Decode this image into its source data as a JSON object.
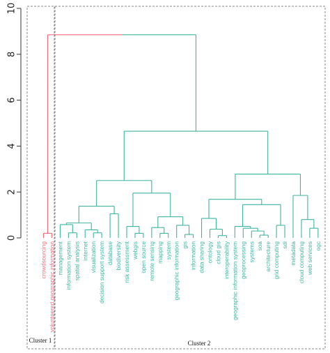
{
  "chart_data": {
    "type": "dendrogram",
    "ylim": [
      0,
      10
    ],
    "yticks": [
      0,
      2,
      4,
      6,
      8,
      10
    ],
    "colors": {
      "cluster1": "#f06a7a",
      "cluster2": "#3fb5a0"
    },
    "leaves": [
      {
        "id": "crowdsourcing",
        "label": "crowdsourcing",
        "cluster": 1
      },
      {
        "id": "vgi",
        "label": "volunteered geographic information",
        "cluster": 1
      },
      {
        "id": "mgmt",
        "label": "management",
        "cluster": 2
      },
      {
        "id": "infosys",
        "label": "information system",
        "cluster": 2
      },
      {
        "id": "spatial",
        "label": "spatial analysis",
        "cluster": 2
      },
      {
        "id": "internet",
        "label": "internet",
        "cluster": 2
      },
      {
        "id": "vis",
        "label": "visualization",
        "cluster": 2
      },
      {
        "id": "dss",
        "label": "decision support system",
        "cluster": 2
      },
      {
        "id": "db",
        "label": "database",
        "cluster": 2
      },
      {
        "id": "bio",
        "label": "biodiversity",
        "cluster": 2
      },
      {
        "id": "risk",
        "label": "risk assessment",
        "cluster": 2
      },
      {
        "id": "webgis",
        "label": "webgis",
        "cluster": 2
      },
      {
        "id": "opensrc",
        "label": "open source",
        "cluster": 2
      },
      {
        "id": "rs",
        "label": "remote sensing",
        "cluster": 2
      },
      {
        "id": "mapping",
        "label": "mapping",
        "cluster": 2
      },
      {
        "id": "system",
        "label": "system",
        "cluster": 2
      },
      {
        "id": "geoinfo",
        "label": "geographic information",
        "cluster": 2
      },
      {
        "id": "gis",
        "label": "gis",
        "cluster": 2
      },
      {
        "id": "information",
        "label": "information",
        "cluster": 2
      },
      {
        "id": "datashare",
        "label": "data sharing",
        "cluster": 2
      },
      {
        "id": "ontology",
        "label": "ontology",
        "cluster": 2
      },
      {
        "id": "cloudgis",
        "label": "cloud gis",
        "cluster": 2
      },
      {
        "id": "interop",
        "label": "interoperability",
        "cluster": 2
      },
      {
        "id": "geoinfosys",
        "label": "geographic information system",
        "cluster": 2
      },
      {
        "id": "geoproc",
        "label": "geoprocessing",
        "cluster": 2
      },
      {
        "id": "systems",
        "label": "systems",
        "cluster": 2
      },
      {
        "id": "soa",
        "label": "soa",
        "cluster": 2
      },
      {
        "id": "arch",
        "label": "architecture",
        "cluster": 2
      },
      {
        "id": "grid",
        "label": "grid computing",
        "cluster": 2
      },
      {
        "id": "sdi",
        "label": "sdi",
        "cluster": 2
      },
      {
        "id": "metadata",
        "label": "metadata",
        "cluster": 2
      },
      {
        "id": "cloudcomp",
        "label": "cloud computing",
        "cluster": 2
      },
      {
        "id": "websvc",
        "label": "web services",
        "cluster": 2
      },
      {
        "id": "ogc",
        "label": "ogc",
        "cluster": 2
      }
    ],
    "merges": [
      {
        "id": "m1",
        "left": "crowdsourcing",
        "right": "vgi",
        "height": 0.2
      },
      {
        "id": "m2",
        "left": "infosys",
        "right": "spatial",
        "height": 0.22
      },
      {
        "id": "m3",
        "left": "mgmt",
        "right": "m2",
        "height": 0.58
      },
      {
        "id": "m4",
        "left": "vis",
        "right": "dss",
        "height": 0.22
      },
      {
        "id": "m5",
        "left": "internet",
        "right": "m4",
        "height": 0.35
      },
      {
        "id": "m6",
        "left": "m3",
        "right": "m5",
        "height": 0.65
      },
      {
        "id": "m7",
        "left": "db",
        "right": "bio",
        "height": 1.05
      },
      {
        "id": "m8",
        "left": "m6",
        "right": "m7",
        "height": 1.38
      },
      {
        "id": "m9",
        "left": "webgis",
        "right": "opensrc",
        "height": 0.2
      },
      {
        "id": "m10",
        "left": "risk",
        "right": "m9",
        "height": 0.5
      },
      {
        "id": "m11",
        "left": "mapping",
        "right": "system",
        "height": 0.2
      },
      {
        "id": "m12",
        "left": "rs",
        "right": "m11",
        "height": 0.45
      },
      {
        "id": "m13",
        "left": "gis",
        "right": "information",
        "height": 0.15
      },
      {
        "id": "m14",
        "left": "geoinfo",
        "right": "m13",
        "height": 0.55
      },
      {
        "id": "m15",
        "left": "m12",
        "right": "m14",
        "height": 0.92
      },
      {
        "id": "m16",
        "left": "m10",
        "right": "m15",
        "height": 1.95
      },
      {
        "id": "m17",
        "left": "m8",
        "right": "m16",
        "height": 2.5
      },
      {
        "id": "m18",
        "left": "cloudgis",
        "right": "interop",
        "height": 0.1
      },
      {
        "id": "m19",
        "left": "ontology",
        "right": "m18",
        "height": 0.38
      },
      {
        "id": "m20",
        "left": "datashare",
        "right": "m19",
        "height": 0.85
      },
      {
        "id": "m21",
        "left": "soa",
        "right": "arch",
        "height": 0.12
      },
      {
        "id": "m22",
        "left": "systems",
        "right": "m21",
        "height": 0.3
      },
      {
        "id": "m23",
        "left": "geoproc",
        "right": "m22",
        "height": 0.42
      },
      {
        "id": "m24",
        "left": "geoinfosys",
        "right": "m23",
        "height": 0.5
      },
      {
        "id": "m25",
        "left": "grid",
        "right": "sdi",
        "height": 0.55
      },
      {
        "id": "m26",
        "left": "m24",
        "right": "m25",
        "height": 1.45
      },
      {
        "id": "m27",
        "left": "m20",
        "right": "m26",
        "height": 1.68
      },
      {
        "id": "m28",
        "left": "websvc",
        "right": "ogc",
        "height": 0.42
      },
      {
        "id": "m29",
        "left": "cloudcomp",
        "right": "m28",
        "height": 0.8
      },
      {
        "id": "m30",
        "left": "metadata",
        "right": "m29",
        "height": 1.85
      },
      {
        "id": "m31",
        "left": "m27",
        "right": "m30",
        "height": 2.78
      },
      {
        "id": "m32",
        "left": "m17",
        "right": "m31",
        "height": 4.65
      },
      {
        "id": "m33",
        "left": "m1",
        "right": "m32",
        "height": 8.85
      }
    ]
  },
  "annotations": {
    "cluster1_label": "Cluster 1",
    "cluster2_label": "Cluster 2"
  }
}
